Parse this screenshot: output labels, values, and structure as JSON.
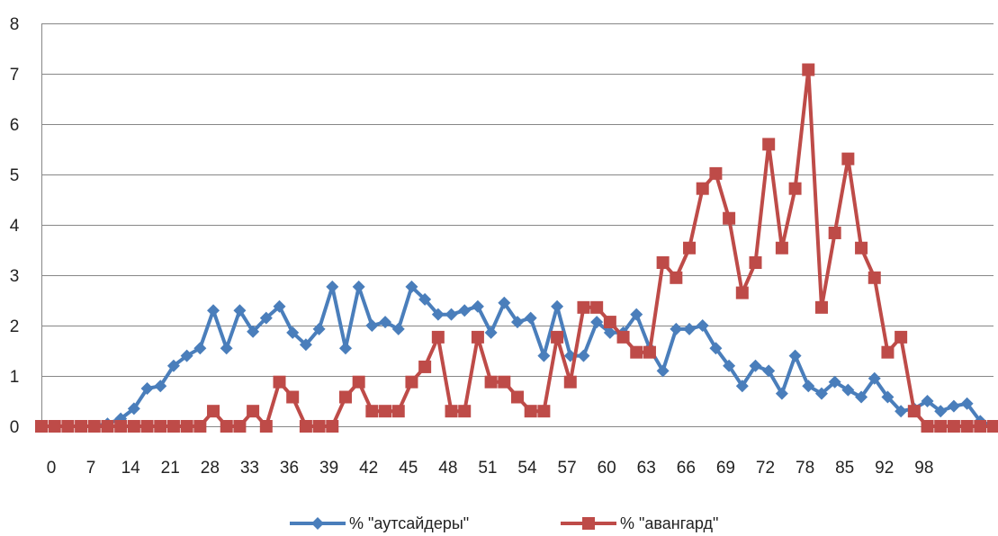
{
  "chart_data": {
    "type": "line",
    "x": [
      0,
      2,
      4,
      7,
      9,
      11,
      14,
      16,
      18,
      21,
      23,
      25,
      28,
      30,
      32,
      33,
      35,
      36,
      38,
      39,
      40,
      41,
      42,
      43,
      45,
      46,
      47,
      48,
      49,
      50,
      51,
      52,
      53,
      54,
      55,
      56,
      57,
      58,
      59,
      60,
      61,
      62,
      63,
      64,
      65,
      66,
      67,
      68,
      69,
      70,
      71,
      72,
      73,
      74,
      75,
      76,
      78,
      79,
      80,
      81,
      82,
      83,
      84,
      85,
      86,
      88,
      90,
      92,
      94,
      96,
      97,
      98,
      99
    ],
    "x_tick_labels": [
      "0",
      "7",
      "14",
      "21",
      "28",
      "33",
      "36",
      "39",
      "42",
      "45",
      "48",
      "51",
      "54",
      "57",
      "60",
      "63",
      "66",
      "69",
      "72",
      "78",
      "85",
      "92",
      "98"
    ],
    "series": [
      {
        "name": "% \"аутсайдеры\"",
        "color": "#4a7ebb",
        "marker": "diamond",
        "values": [
          0,
          0,
          0,
          0,
          0,
          0.05,
          0.15,
          0.35,
          0.75,
          0.8,
          1.2,
          1.4,
          1.55,
          2.3,
          1.55,
          2.3,
          1.88,
          2.15,
          2.38,
          1.86,
          1.62,
          1.93,
          2.77,
          1.55,
          2.77,
          2.0,
          2.07,
          1.93,
          2.77,
          2.52,
          2.22,
          2.22,
          2.3,
          2.38,
          1.86,
          2.45,
          2.07,
          2.15,
          1.4,
          2.38,
          1.4,
          1.4,
          2.07,
          1.86,
          1.86,
          2.22,
          1.55,
          1.1,
          1.93,
          1.93,
          2.0,
          1.55,
          1.2,
          0.8,
          1.2,
          1.1,
          0.65,
          1.4,
          0.8,
          0.65,
          0.88,
          0.72,
          0.58,
          0.95,
          0.58,
          0.3,
          0.35,
          0.5,
          0.3,
          0.4,
          0.45,
          0.1,
          0
        ]
      },
      {
        "name": "% \"авангард\"",
        "color": "#be4b48",
        "marker": "square",
        "values": [
          0,
          0,
          0,
          0,
          0,
          0,
          0,
          0,
          0,
          0,
          0,
          0,
          0,
          0.3,
          0,
          0,
          0.3,
          0,
          0.88,
          0.58,
          0,
          0,
          0,
          0.58,
          0.88,
          0.3,
          0.3,
          0.3,
          0.88,
          1.18,
          1.77,
          0.3,
          0.3,
          1.77,
          0.88,
          0.88,
          0.58,
          0.3,
          0.3,
          1.77,
          0.88,
          2.36,
          2.36,
          2.07,
          1.77,
          1.47,
          1.47,
          3.25,
          2.95,
          3.54,
          4.72,
          5.02,
          4.13,
          2.65,
          3.25,
          5.6,
          3.54,
          4.72,
          7.08,
          2.36,
          3.84,
          5.31,
          3.54,
          2.95,
          1.47,
          1.77,
          0.3,
          0,
          0,
          0,
          0,
          0,
          0
        ]
      }
    ],
    "ylim": [
      0,
      8
    ],
    "yticks": [
      0,
      1,
      2,
      3,
      4,
      5,
      6,
      7,
      8
    ],
    "xlabel": "",
    "ylabel": "",
    "title": "",
    "grid": "horizontal",
    "legend_position": "bottom"
  }
}
